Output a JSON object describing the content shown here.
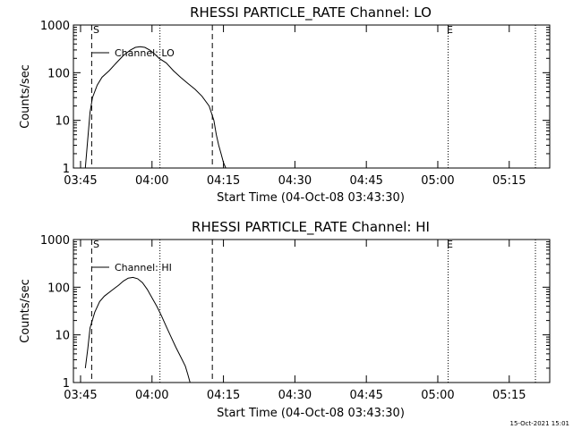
{
  "footer": {
    "timestamp": "15-Oct-2021 15:01"
  },
  "chart_data": [
    {
      "type": "line",
      "title": "RHESSI PARTICLE_RATE Channel: LO",
      "xlabel": "Start Time (04-Oct-08 03:43:30)",
      "ylabel": "Counts/sec",
      "yscale": "log",
      "xlim": [
        "03:43:30",
        "05:23:30"
      ],
      "ylim": [
        1,
        1000
      ],
      "xticks": [
        "03:45",
        "04:00",
        "04:15",
        "04:30",
        "04:45",
        "05:00",
        "05:15"
      ],
      "yticks": [
        "1",
        "10",
        "100",
        "1000"
      ],
      "legend": "Channel: LO",
      "legend_position": "top-left",
      "markers": {
        "start": "S",
        "end": "E"
      },
      "series": [
        {
          "name": "LO",
          "x": [
            "03:46",
            "03:46:30",
            "03:47",
            "03:47:30",
            "03:48:30",
            "03:49:30",
            "03:51",
            "03:52:30",
            "03:54",
            "03:55:30",
            "03:56:30",
            "03:57:30",
            "03:58:30",
            "03:59:30",
            "04:00:30",
            "04:01:30",
            "04:03",
            "04:04:30",
            "04:06",
            "04:07:30",
            "04:09",
            "04:10:30",
            "04:12",
            "04:13",
            "04:13:30",
            "04:14",
            "04:14:30",
            "04:15",
            "04:15:30"
          ],
          "y": [
            1,
            4,
            15,
            30,
            55,
            80,
            110,
            160,
            230,
            300,
            340,
            350,
            340,
            300,
            250,
            200,
            160,
            110,
            80,
            60,
            45,
            32,
            20,
            10,
            5,
            3,
            2,
            1.3,
            1
          ]
        }
      ],
      "vlines": [
        {
          "time": "03:47:20",
          "style": "dashed"
        },
        {
          "time": "04:01:40",
          "style": "dotted"
        },
        {
          "time": "04:12:40",
          "style": "dashed"
        },
        {
          "time": "05:02:10",
          "style": "dotted"
        },
        {
          "time": "05:20:30",
          "style": "dotted"
        }
      ]
    },
    {
      "type": "line",
      "title": "RHESSI PARTICLE_RATE Channel: HI",
      "xlabel": "Start Time (04-Oct-08 03:43:30)",
      "ylabel": "Counts/sec",
      "yscale": "log",
      "xlim": [
        "03:43:30",
        "05:23:30"
      ],
      "ylim": [
        1,
        1000
      ],
      "xticks": [
        "03:45",
        "04:00",
        "04:15",
        "04:30",
        "04:45",
        "05:00",
        "05:15"
      ],
      "yticks": [
        "1",
        "10",
        "100",
        "1000"
      ],
      "legend": "Channel: HI",
      "legend_position": "top-left",
      "markers": {
        "start": "S",
        "end": "E"
      },
      "series": [
        {
          "name": "HI",
          "x": [
            "03:46",
            "03:46:30",
            "03:47",
            "03:48",
            "03:49",
            "03:50",
            "03:51:30",
            "03:53",
            "03:54",
            "03:55",
            "03:56",
            "03:57",
            "03:58",
            "03:59",
            "04:00",
            "04:01",
            "04:02",
            "04:03",
            "04:04",
            "04:05",
            "04:06",
            "04:07",
            "04:07:30",
            "04:08"
          ],
          "y": [
            2,
            5,
            14,
            30,
            50,
            65,
            85,
            110,
            135,
            155,
            160,
            150,
            125,
            90,
            60,
            40,
            25,
            15,
            9,
            5.5,
            3.5,
            2.2,
            1.5,
            1
          ]
        }
      ],
      "vlines": [
        {
          "time": "03:47:20",
          "style": "dashed"
        },
        {
          "time": "04:01:40",
          "style": "dotted"
        },
        {
          "time": "04:12:40",
          "style": "dashed"
        },
        {
          "time": "05:02:10",
          "style": "dotted"
        },
        {
          "time": "05:20:30",
          "style": "dotted"
        }
      ]
    }
  ]
}
